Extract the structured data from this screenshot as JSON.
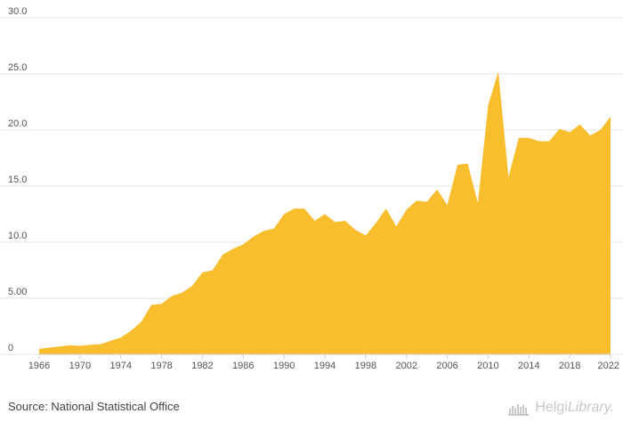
{
  "chart_data": {
    "type": "area",
    "title": "",
    "xlabel": "",
    "ylabel": "",
    "ylim": [
      0,
      30
    ],
    "xlim": [
      1966,
      2022
    ],
    "grid": true,
    "legend": "none",
    "yticks": [
      {
        "value": 0,
        "label": "0"
      },
      {
        "value": 5,
        "label": "5.00"
      },
      {
        "value": 10,
        "label": "10.0"
      },
      {
        "value": 15,
        "label": "15.0"
      },
      {
        "value": 20,
        "label": "20.0"
      },
      {
        "value": 25,
        "label": "25.0"
      },
      {
        "value": 30,
        "label": "30.0"
      }
    ],
    "xticks": [
      1966,
      1970,
      1974,
      1978,
      1982,
      1986,
      1990,
      1994,
      1998,
      2002,
      2006,
      2010,
      2014,
      2018,
      2022
    ],
    "colors": {
      "fill": "#F9BE2E",
      "grid": "#e6e6e6",
      "axis": "#555555"
    },
    "series": [
      {
        "x": [
          1966,
          1967,
          1968,
          1969,
          1970,
          1971,
          1972,
          1973,
          1974,
          1975,
          1976,
          1977,
          1978,
          1979,
          1980,
          1981,
          1982,
          1983,
          1984,
          1985,
          1986,
          1987,
          1988,
          1989,
          1990,
          1991,
          1992,
          1993,
          1994,
          1995,
          1996,
          1997,
          1998,
          1999,
          2000,
          2001,
          2002,
          2003,
          2004,
          2005,
          2006,
          2007,
          2008,
          2009,
          2010,
          2011,
          2012,
          2013,
          2014,
          2015,
          2016,
          2017,
          2018,
          2019,
          2020,
          2021,
          2022
        ],
        "values": [
          0.5,
          0.6,
          0.7,
          0.8,
          0.75,
          0.85,
          0.9,
          1.2,
          1.5,
          2.1,
          2.9,
          4.4,
          4.5,
          5.2,
          5.5,
          6.1,
          7.3,
          7.5,
          8.9,
          9.4,
          9.8,
          10.5,
          11.0,
          11.2,
          12.5,
          13.0,
          13.0,
          11.9,
          12.5,
          11.8,
          11.9,
          11.1,
          10.6,
          11.7,
          13.0,
          11.4,
          12.9,
          13.7,
          13.6,
          14.7,
          13.3,
          16.9,
          17.0,
          13.5,
          22.2,
          25.2,
          15.8,
          19.3,
          19.3,
          19.0,
          19.0,
          20.1,
          19.8,
          20.5,
          19.5,
          20.0,
          21.2
        ]
      }
    ]
  },
  "footer": {
    "source": "Source: National Statistical Office",
    "brand_main": "Helgi",
    "brand_sub": "Library.",
    "brand_icon": "helgi-library-logo-icon"
  }
}
